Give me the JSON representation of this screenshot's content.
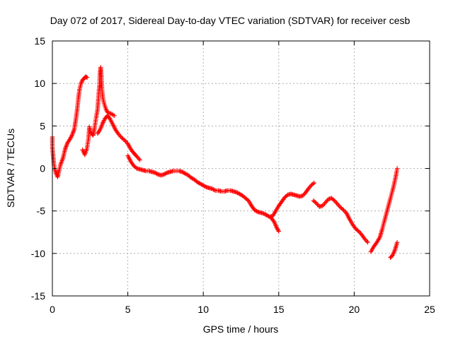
{
  "chart_data": {
    "type": "scatter",
    "title": "Day 072 of 2017, Sidereal Day-to-day VTEC variation (SDTVAR) for receiver cesb",
    "xlabel": "GPS time / hours",
    "ylabel": "SDTVAR / TECUs",
    "xlim": [
      0,
      25
    ],
    "ylim": [
      -15,
      15
    ],
    "xticks": [
      "0",
      "5",
      "10",
      "15",
      "20",
      "25"
    ],
    "yticks": [
      "15",
      "10",
      "5",
      "0",
      "-5",
      "-10",
      "-15"
    ],
    "xtick_values": [
      0,
      5,
      10,
      15,
      20,
      25
    ],
    "ytick_values": [
      15,
      10,
      5,
      0,
      -5,
      -10,
      -15
    ],
    "grid": true,
    "marker": "+",
    "color": "#ff0000",
    "series": [
      {
        "name": "SDTVAR",
        "segments": [
          [
            [
              0.0,
              3.7
            ],
            [
              0.0,
              2.5
            ],
            [
              0.05,
              1.5
            ],
            [
              0.1,
              0.5
            ],
            [
              0.15,
              0.0
            ],
            [
              0.25,
              -0.6
            ],
            [
              0.35,
              -1.0
            ],
            [
              0.45,
              -0.2
            ],
            [
              0.55,
              0.5
            ],
            [
              0.7,
              1.2
            ],
            [
              0.85,
              2.3
            ],
            [
              1.0,
              3.0
            ],
            [
              1.15,
              3.4
            ],
            [
              1.3,
              3.9
            ],
            [
              1.45,
              4.6
            ],
            [
              1.55,
              5.7
            ],
            [
              1.65,
              7.0
            ],
            [
              1.72,
              8.2
            ],
            [
              1.8,
              9.3
            ],
            [
              1.9,
              10.0
            ],
            [
              2.0,
              10.4
            ],
            [
              2.1,
              10.6
            ],
            [
              2.2,
              10.8
            ],
            [
              2.3,
              10.7
            ]
          ],
          [
            [
              2.0,
              2.2
            ],
            [
              2.15,
              1.6
            ],
            [
              2.3,
              2.4
            ],
            [
              2.4,
              3.6
            ],
            [
              2.45,
              4.9
            ],
            [
              2.55,
              4.2
            ],
            [
              2.7,
              3.9
            ],
            [
              2.8,
              4.8
            ],
            [
              2.9,
              6.0
            ],
            [
              3.0,
              7.0
            ],
            [
              3.05,
              8.3
            ],
            [
              3.12,
              9.8
            ],
            [
              3.15,
              11.2
            ],
            [
              3.2,
              11.9
            ],
            [
              3.25,
              10.8
            ],
            [
              3.3,
              9.0
            ],
            [
              3.35,
              8.2
            ],
            [
              3.45,
              7.5
            ],
            [
              3.55,
              7.0
            ],
            [
              3.65,
              6.6
            ],
            [
              3.8,
              6.5
            ],
            [
              3.95,
              6.4
            ],
            [
              4.1,
              6.2
            ]
          ],
          [
            [
              3.0,
              4.1
            ],
            [
              3.2,
              4.7
            ],
            [
              3.35,
              5.4
            ],
            [
              3.5,
              5.9
            ],
            [
              3.65,
              6.2
            ],
            [
              3.8,
              5.9
            ],
            [
              4.0,
              5.2
            ],
            [
              4.2,
              4.5
            ],
            [
              4.4,
              4.0
            ],
            [
              4.6,
              3.6
            ],
            [
              4.8,
              3.3
            ],
            [
              5.0,
              2.9
            ],
            [
              5.15,
              2.4
            ],
            [
              5.3,
              2.0
            ],
            [
              5.45,
              1.7
            ],
            [
              5.6,
              1.4
            ],
            [
              5.8,
              1.0
            ]
          ],
          [
            [
              5.0,
              1.5
            ],
            [
              5.2,
              0.8
            ],
            [
              5.4,
              0.3
            ],
            [
              5.6,
              0.0
            ],
            [
              5.8,
              -0.1
            ],
            [
              6.0,
              -0.2
            ],
            [
              6.2,
              -0.3
            ],
            [
              6.4,
              -0.3
            ],
            [
              6.6,
              -0.4
            ],
            [
              6.8,
              -0.5
            ],
            [
              7.0,
              -0.7
            ],
            [
              7.2,
              -0.8
            ],
            [
              7.4,
              -0.7
            ],
            [
              7.6,
              -0.5
            ],
            [
              7.8,
              -0.4
            ],
            [
              8.0,
              -0.3
            ],
            [
              8.2,
              -0.3
            ],
            [
              8.4,
              -0.3
            ],
            [
              8.6,
              -0.4
            ],
            [
              8.8,
              -0.6
            ],
            [
              9.0,
              -0.8
            ],
            [
              9.2,
              -1.1
            ],
            [
              9.4,
              -1.3
            ],
            [
              9.6,
              -1.6
            ],
            [
              9.8,
              -1.8
            ],
            [
              10.0,
              -2.0
            ],
            [
              10.2,
              -2.2
            ],
            [
              10.4,
              -2.3
            ],
            [
              10.6,
              -2.4
            ],
            [
              10.8,
              -2.6
            ],
            [
              11.0,
              -2.6
            ],
            [
              11.2,
              -2.7
            ],
            [
              11.4,
              -2.7
            ],
            [
              11.6,
              -2.6
            ],
            [
              11.8,
              -2.6
            ],
            [
              12.0,
              -2.7
            ],
            [
              12.2,
              -2.8
            ],
            [
              12.4,
              -3.0
            ],
            [
              12.6,
              -3.2
            ],
            [
              12.8,
              -3.5
            ],
            [
              13.0,
              -3.8
            ],
            [
              13.2,
              -4.4
            ],
            [
              13.4,
              -4.9
            ],
            [
              13.6,
              -5.1
            ],
            [
              13.8,
              -5.2
            ],
            [
              14.0,
              -5.3
            ],
            [
              14.2,
              -5.5
            ],
            [
              14.4,
              -5.7
            ],
            [
              14.6,
              -5.6
            ],
            [
              14.8,
              -5.0
            ],
            [
              15.0,
              -4.4
            ],
            [
              15.2,
              -3.9
            ],
            [
              15.4,
              -3.4
            ],
            [
              15.6,
              -3.1
            ],
            [
              15.8,
              -3.0
            ],
            [
              16.0,
              -3.1
            ],
            [
              16.2,
              -3.2
            ],
            [
              16.4,
              -3.3
            ],
            [
              16.6,
              -3.2
            ],
            [
              16.8,
              -2.8
            ],
            [
              17.0,
              -2.3
            ],
            [
              17.2,
              -1.9
            ],
            [
              17.35,
              -1.7
            ]
          ],
          [
            [
              14.5,
              -5.8
            ],
            [
              14.7,
              -6.3
            ],
            [
              14.85,
              -6.9
            ],
            [
              15.0,
              -7.4
            ]
          ],
          [
            [
              17.3,
              -3.8
            ],
            [
              17.5,
              -4.1
            ],
            [
              17.7,
              -4.5
            ],
            [
              17.9,
              -4.4
            ],
            [
              18.1,
              -4.0
            ],
            [
              18.3,
              -3.6
            ],
            [
              18.5,
              -3.5
            ],
            [
              18.7,
              -3.8
            ],
            [
              18.9,
              -4.2
            ],
            [
              19.1,
              -4.6
            ],
            [
              19.3,
              -4.9
            ],
            [
              19.5,
              -5.3
            ],
            [
              19.7,
              -6.0
            ],
            [
              19.9,
              -6.6
            ],
            [
              20.1,
              -7.1
            ],
            [
              20.3,
              -7.4
            ],
            [
              20.5,
              -7.8
            ],
            [
              20.7,
              -8.3
            ],
            [
              20.9,
              -8.7
            ]
          ],
          [
            [
              21.1,
              -9.8
            ],
            [
              21.3,
              -9.2
            ],
            [
              21.5,
              -8.7
            ],
            [
              21.7,
              -8.1
            ],
            [
              21.85,
              -7.2
            ],
            [
              22.0,
              -6.2
            ],
            [
              22.15,
              -5.2
            ],
            [
              22.3,
              -4.2
            ],
            [
              22.45,
              -3.2
            ],
            [
              22.6,
              -2.2
            ],
            [
              22.75,
              -1.0
            ],
            [
              22.85,
              0.0
            ]
          ],
          [
            [
              22.4,
              -10.5
            ],
            [
              22.55,
              -10.2
            ],
            [
              22.7,
              -9.6
            ],
            [
              22.85,
              -8.7
            ]
          ]
        ]
      }
    ]
  }
}
